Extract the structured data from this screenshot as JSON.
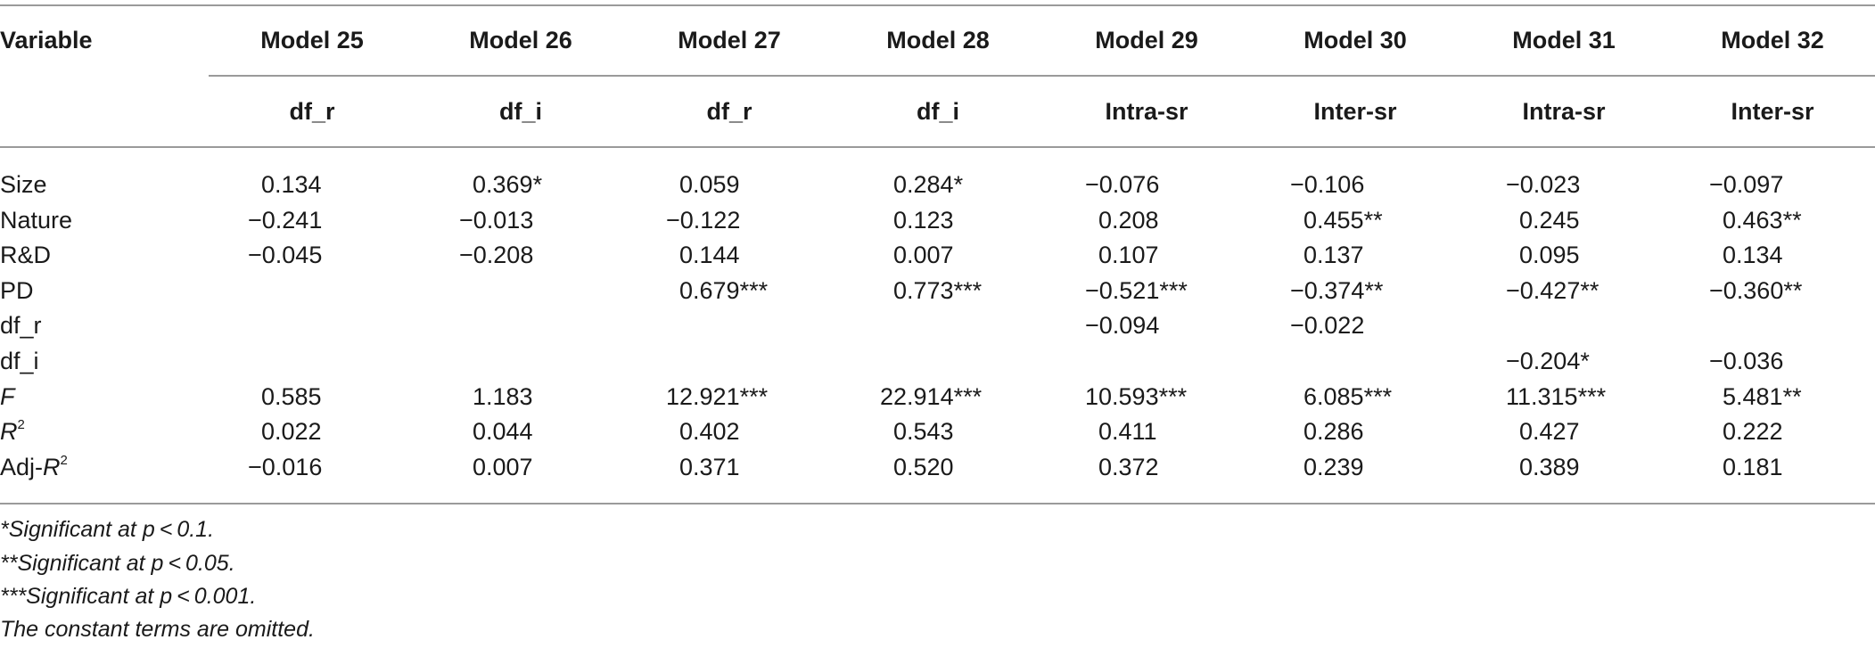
{
  "table": {
    "corner_label": "Variable",
    "models": [
      "Model 25",
      "Model 26",
      "Model 27",
      "Model 28",
      "Model 29",
      "Model 30",
      "Model 31",
      "Model 32"
    ],
    "dependents": [
      "df_r",
      "df_i",
      "df_r",
      "df_i",
      "Intra-sr",
      "Inter-sr",
      "Intra-sr",
      "Inter-sr"
    ],
    "rows": [
      {
        "label": "Size",
        "cells": [
          "0.134",
          "0.369*",
          "0.059",
          "0.284*",
          "−0.076",
          "−0.106",
          "−0.023",
          "−0.097"
        ]
      },
      {
        "label": "Nature",
        "cells": [
          "−0.241",
          "−0.013",
          "−0.122",
          "0.123",
          "0.208",
          "0.455**",
          "0.245",
          "0.463**"
        ]
      },
      {
        "label": "R&D",
        "cells": [
          "−0.045",
          "−0.208",
          "0.144",
          "0.007",
          "0.107",
          "0.137",
          "0.095",
          "0.134"
        ]
      },
      {
        "label": "PD",
        "cells": [
          "",
          "",
          "0.679***",
          "0.773***",
          "−0.521***",
          "−0.374**",
          "−0.427**",
          "−0.360**"
        ]
      },
      {
        "label": "df_r",
        "cells": [
          "",
          "",
          "",
          "",
          "−0.094",
          "−0.022",
          "",
          ""
        ]
      },
      {
        "label": "df_i",
        "cells": [
          "",
          "",
          "",
          "",
          "",
          "",
          "−0.204*",
          "−0.036"
        ]
      },
      {
        "label_italic": "F",
        "cells": [
          "0.585",
          "1.183",
          "12.921***",
          "22.914***",
          "10.593***",
          "6.085***",
          "11.315***",
          "5.481**"
        ]
      },
      {
        "label_italic": "R",
        "label_sup": "2",
        "cells": [
          "0.022",
          "0.044",
          "0.402",
          "0.543",
          "0.411",
          "0.286",
          "0.427",
          "0.222"
        ]
      },
      {
        "label_prefix": "Adj-",
        "label_italic": "R",
        "label_sup": "2",
        "cells": [
          "−0.016",
          "0.007",
          "0.371",
          "0.520",
          "0.372",
          "0.239",
          "0.389",
          "0.181"
        ]
      }
    ]
  },
  "notes": [
    "*Significant at p < 0.1.",
    "**Significant at p < 0.05.",
    "***Significant at p < 0.001.",
    "The constant terms are omitted."
  ]
}
